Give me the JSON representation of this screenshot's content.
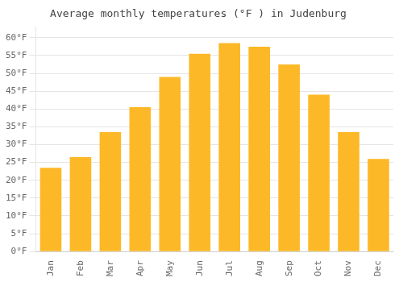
{
  "chart_data": {
    "type": "bar",
    "title": "Average monthly temperatures (°F ) in Judenburg",
    "categories": [
      "Jan",
      "Feb",
      "Mar",
      "Apr",
      "May",
      "Jun",
      "Jul",
      "Aug",
      "Sep",
      "Oct",
      "Nov",
      "Dec"
    ],
    "values": [
      23.5,
      26.5,
      33.5,
      40.5,
      49.0,
      55.5,
      58.5,
      57.5,
      52.5,
      44.0,
      33.5,
      26.0
    ],
    "color": "#FDB827",
    "ylim": [
      0,
      63
    ],
    "yticks": [
      {
        "value": 0,
        "label": "0°F"
      },
      {
        "value": 5,
        "label": "5°F"
      },
      {
        "value": 10,
        "label": "10°F"
      },
      {
        "value": 15,
        "label": "15°F"
      },
      {
        "value": 20,
        "label": "20°F"
      },
      {
        "value": 25,
        "label": "25°F"
      },
      {
        "value": 30,
        "label": "30°F"
      },
      {
        "value": 35,
        "label": "35°F"
      },
      {
        "value": 40,
        "label": "40°F"
      },
      {
        "value": 45,
        "label": "45°F"
      },
      {
        "value": 50,
        "label": "50°F"
      },
      {
        "value": 55,
        "label": "55°F"
      },
      {
        "value": 60,
        "label": "60°F"
      }
    ],
    "grid": true
  }
}
